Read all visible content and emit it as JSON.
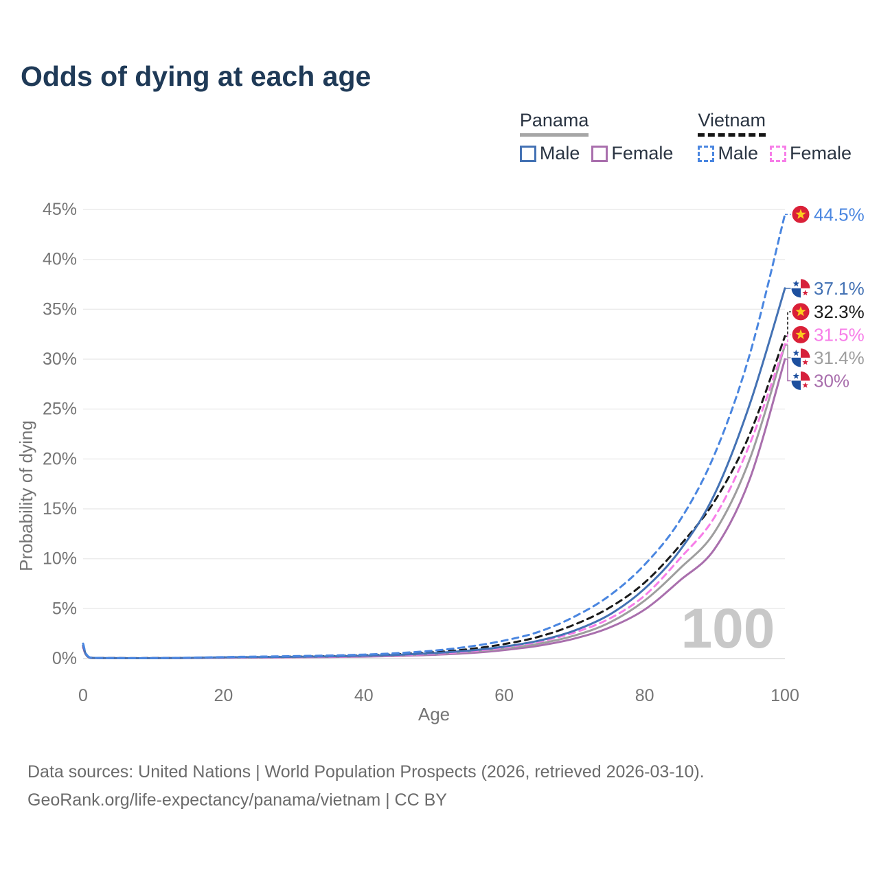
{
  "title": "Odds of dying at each age",
  "legend": {
    "groups": [
      {
        "country": "Panama",
        "line_dashed": false,
        "underline_color": "#a6a6a6",
        "items": [
          {
            "label": "Male",
            "color": "#4472b4",
            "dashed": false
          },
          {
            "label": "Female",
            "color": "#a96fad",
            "dashed": false
          }
        ]
      },
      {
        "country": "Vietnam",
        "line_dashed": true,
        "underline_color": "#151515",
        "items": [
          {
            "label": "Male",
            "color": "#4a86e0",
            "dashed": true
          },
          {
            "label": "Female",
            "color": "#f77ee8",
            "dashed": true
          }
        ]
      }
    ]
  },
  "chart_data": {
    "type": "line",
    "title": "Odds of dying at each age",
    "xlabel": "Age",
    "ylabel": "Probability of dying",
    "xlim": [
      0,
      100
    ],
    "ylim": [
      0,
      45
    ],
    "x_ticks": [
      0,
      20,
      40,
      60,
      80,
      100
    ],
    "y_tick_values": [
      0,
      5,
      10,
      15,
      20,
      25,
      30,
      35,
      40,
      45
    ],
    "y_tick_labels": [
      "0%",
      "5%",
      "10%",
      "15%",
      "20%",
      "25%",
      "30%",
      "35%",
      "40%",
      "45%"
    ],
    "grid": "horizontal",
    "legend_position": "top-right",
    "watermark": "100",
    "x": [
      0,
      1,
      5,
      10,
      15,
      20,
      25,
      30,
      35,
      40,
      45,
      50,
      55,
      60,
      65,
      70,
      75,
      80,
      85,
      90,
      95,
      100
    ],
    "series": [
      {
        "name": "Panama Female",
        "country": "Panama",
        "sex": "Female",
        "flag": "panama",
        "color": "#a96fad",
        "dashed": false,
        "end_label": "30%",
        "label_color": "#a96fad",
        "values": [
          1.1,
          0.06,
          0.03,
          0.03,
          0.05,
          0.08,
          0.1,
          0.13,
          0.16,
          0.2,
          0.27,
          0.38,
          0.55,
          0.85,
          1.3,
          2.0,
          3.1,
          4.9,
          7.8,
          11.0,
          18.0,
          30.0
        ]
      },
      {
        "name": "Panama Total",
        "country": "Panama",
        "sex": "Both",
        "flag": "panama",
        "color": "#9e9e9e",
        "dashed": false,
        "end_label": "31.4%",
        "label_color": "#9e9e9e",
        "values": [
          1.2,
          0.07,
          0.04,
          0.04,
          0.06,
          0.1,
          0.13,
          0.16,
          0.2,
          0.25,
          0.33,
          0.46,
          0.68,
          1.0,
          1.5,
          2.3,
          3.6,
          5.8,
          9.0,
          12.7,
          20.0,
          31.4
        ]
      },
      {
        "name": "Vietnam Female",
        "country": "Vietnam",
        "sex": "Female",
        "flag": "vietnam",
        "color": "#f77ee8",
        "dashed": true,
        "end_label": "31.5%",
        "label_color": "#f77ee8",
        "values": [
          1.2,
          0.08,
          0.04,
          0.04,
          0.06,
          0.09,
          0.12,
          0.15,
          0.19,
          0.25,
          0.34,
          0.48,
          0.72,
          1.1,
          1.7,
          2.6,
          4.0,
          6.3,
          10.0,
          14.2,
          21.5,
          31.5
        ]
      },
      {
        "name": "Vietnam Total",
        "country": "Vietnam",
        "sex": "Both",
        "flag": "vietnam",
        "color": "#1a1a1a",
        "dashed": true,
        "end_label": "32.3%",
        "label_color": "#1a1a1a",
        "values": [
          1.3,
          0.09,
          0.05,
          0.05,
          0.07,
          0.12,
          0.16,
          0.2,
          0.25,
          0.32,
          0.44,
          0.63,
          0.95,
          1.45,
          2.2,
          3.4,
          5.1,
          7.6,
          11.3,
          15.8,
          22.5,
          32.3
        ]
      },
      {
        "name": "Panama Male",
        "country": "Panama",
        "sex": "Male",
        "flag": "panama",
        "color": "#4472b4",
        "dashed": false,
        "end_label": "37.1%",
        "label_color": "#4472b4",
        "values": [
          1.3,
          0.08,
          0.04,
          0.04,
          0.07,
          0.12,
          0.15,
          0.18,
          0.22,
          0.28,
          0.38,
          0.55,
          0.8,
          1.2,
          1.8,
          2.8,
          4.4,
          7.0,
          10.8,
          16.5,
          25.5,
          37.1
        ]
      },
      {
        "name": "Vietnam Male",
        "country": "Vietnam",
        "sex": "Male",
        "flag": "vietnam",
        "color": "#4a86e0",
        "dashed": true,
        "end_label": "44.5%",
        "label_color": "#4a86e0",
        "values": [
          1.5,
          0.1,
          0.05,
          0.05,
          0.08,
          0.15,
          0.2,
          0.25,
          0.3,
          0.4,
          0.55,
          0.8,
          1.2,
          1.8,
          2.7,
          4.2,
          6.3,
          9.4,
          13.8,
          20.5,
          30.5,
          44.5
        ]
      }
    ],
    "flag_colors": {
      "vietnam_red": "#da2038",
      "vietnam_star": "#fccd1d",
      "panama_blue": "#1d4f9e",
      "panama_red": "#d6203c",
      "panama_white": "#ffffff"
    }
  },
  "axis_style": {
    "tick_color": "#757575",
    "grid_color": "#ebebeb",
    "zero_line_color": "#dcdcdc",
    "watermark_color": "#c8c8c8"
  },
  "footer": {
    "line1": "Data sources: United Nations | World Population Prospects (2026, retrieved 2026-03-10).",
    "line2": "GeoRank.org/life-expectancy/panama/vietnam | CC BY"
  }
}
